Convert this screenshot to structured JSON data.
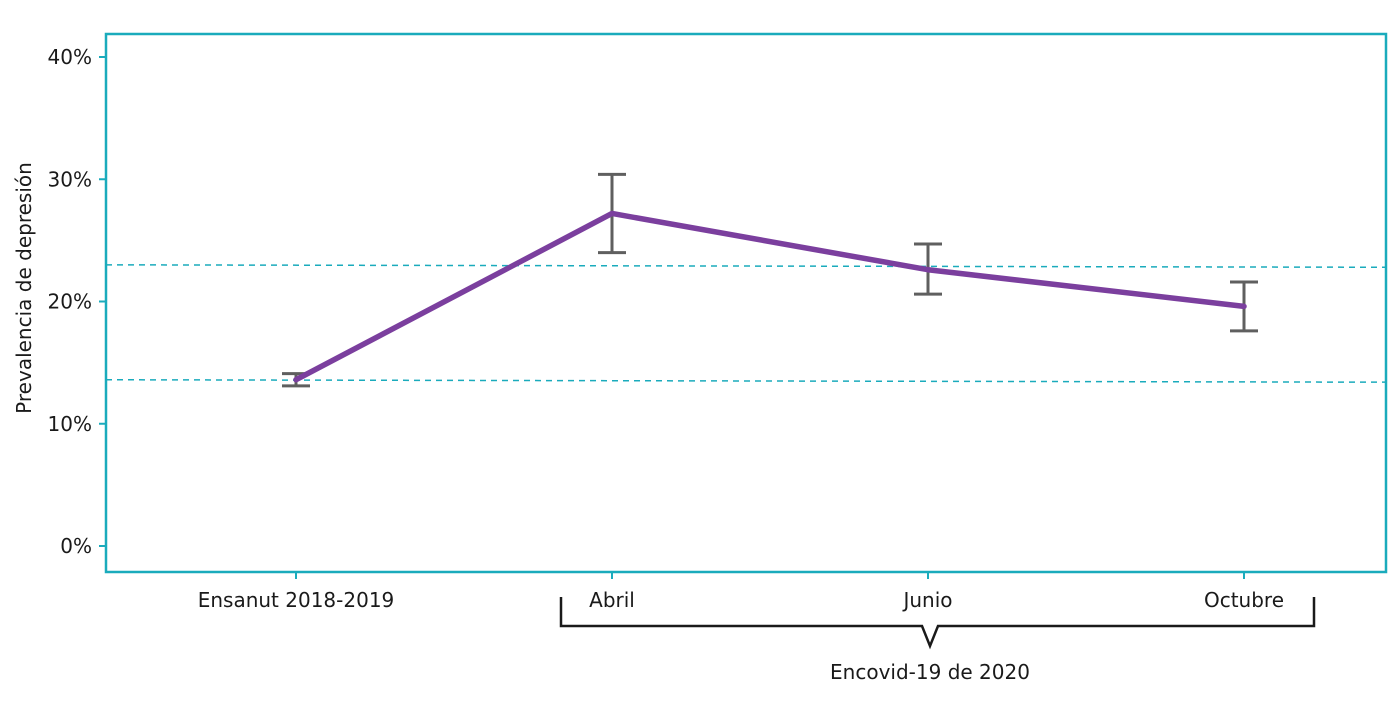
{
  "chart_data": {
    "type": "line",
    "title": "",
    "ylabel": "Prevalencia de depresión",
    "xlabel": "",
    "ylim": [
      0,
      40
    ],
    "y_ticks": [
      {
        "value": 0,
        "label": "0%"
      },
      {
        "value": 10,
        "label": "10%"
      },
      {
        "value": 20,
        "label": "20%"
      },
      {
        "value": 30,
        "label": "30%"
      },
      {
        "value": 40,
        "label": "40%"
      }
    ],
    "categories": [
      "Ensanut 2018-2019",
      "Abril",
      "Junio",
      "Octubre"
    ],
    "series": [
      {
        "values": [
          13.6,
          27.2,
          22.6,
          19.6
        ],
        "lower": [
          13.1,
          24.0,
          20.6,
          17.6
        ],
        "upper": [
          14.1,
          30.4,
          24.7,
          21.6
        ]
      }
    ],
    "reference_lines": [
      {
        "start": 13.6,
        "end": 13.4
      },
      {
        "start": 23.0,
        "end": 22.8
      }
    ],
    "bracket": {
      "label": "Encovid-19 de 2020",
      "from_category": 1,
      "to_category": 3
    },
    "grid": false,
    "legend": "none",
    "colors": {
      "line": "#7b3f9e",
      "error_bar": "#5f5f5f",
      "frame": "#1aabbc",
      "reference": "#1aabbc",
      "bracket": "#1a1a1a",
      "text": "#1a1a1a"
    }
  }
}
